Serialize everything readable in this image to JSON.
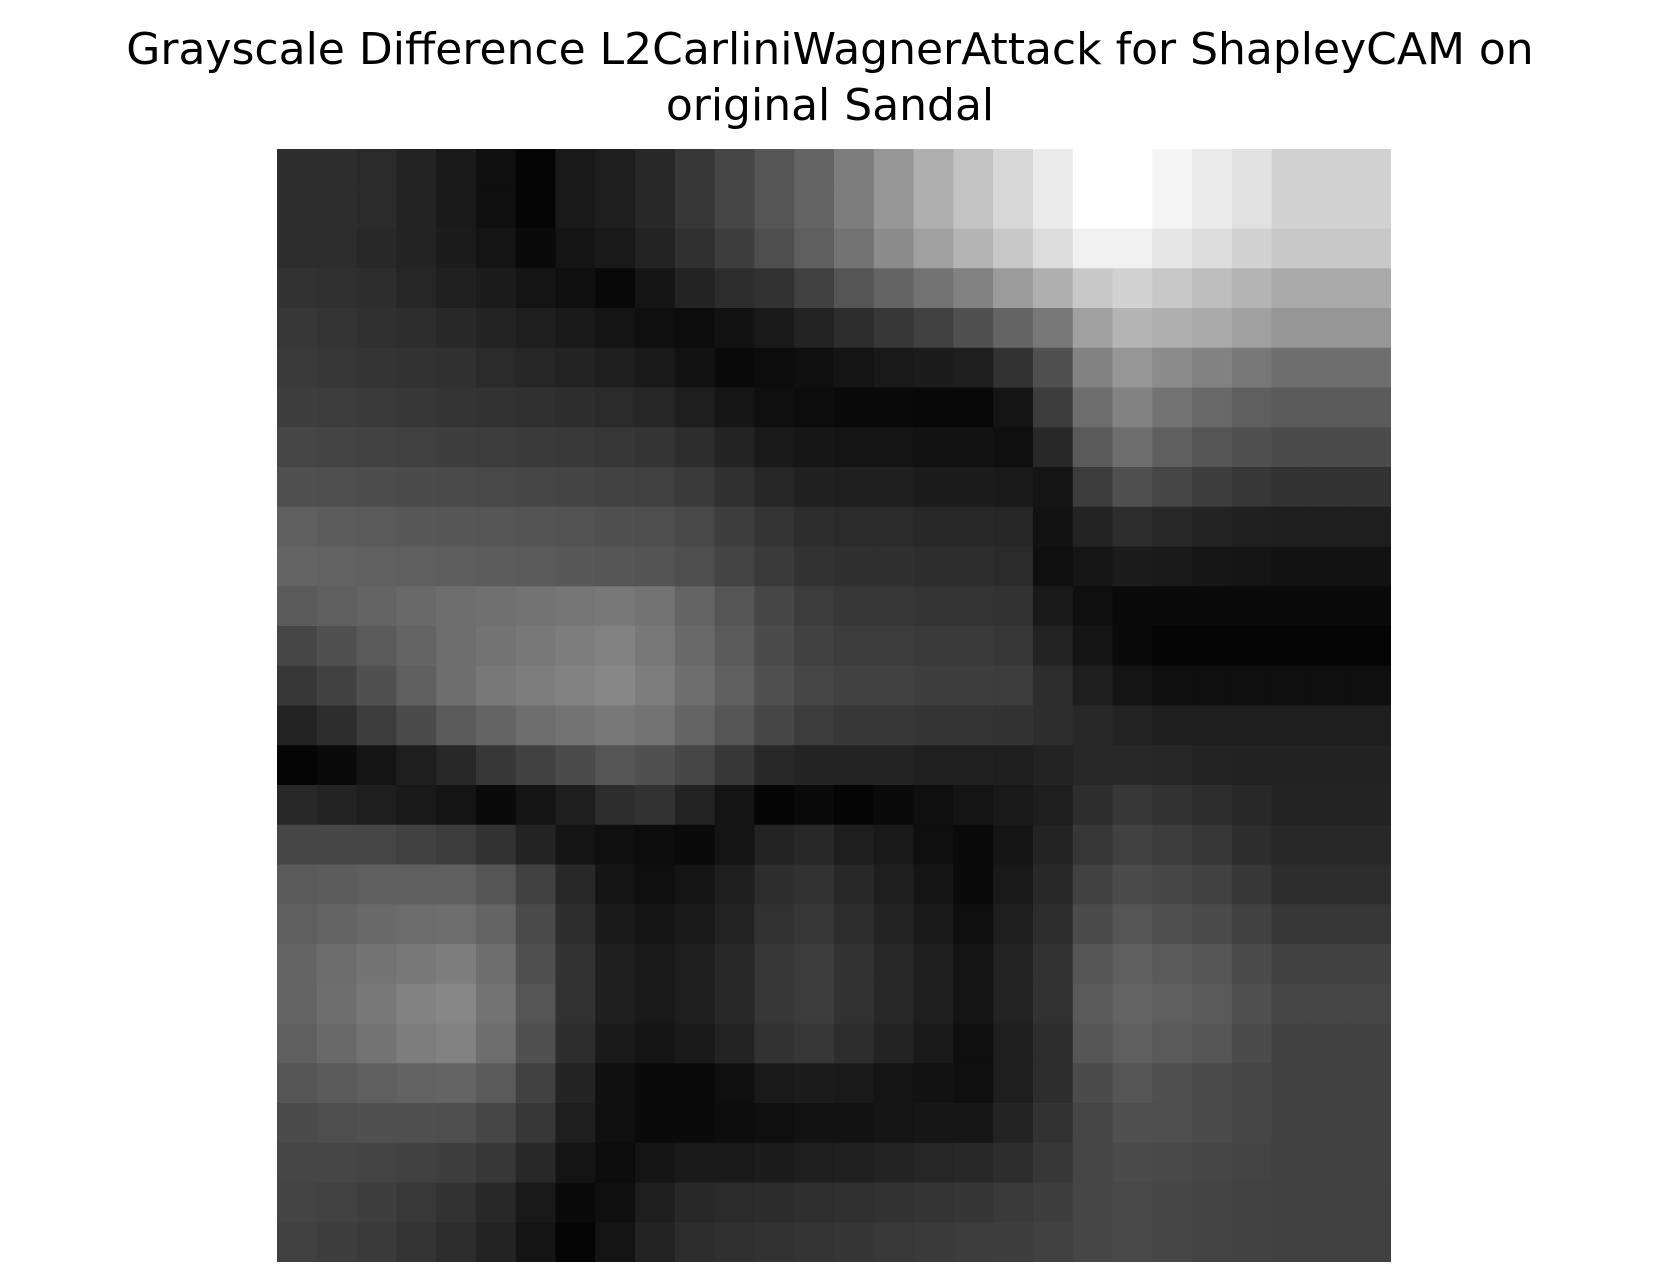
{
  "figure": {
    "title_line1": "Grayscale Difference L2CarliniWagnerAttack for ShapleyCAM on",
    "title_line2": "original Sandal"
  },
  "chart_data": {
    "type": "heatmap",
    "title": "Grayscale Difference L2CarliniWagnerAttack for ShapleyCAM on original Sandal",
    "colormap": "gray",
    "axes_visible": false,
    "rows": 28,
    "cols": 28,
    "values": [
      [
        45,
        45,
        42,
        35,
        25,
        15,
        5,
        25,
        30,
        40,
        55,
        70,
        85,
        100,
        125,
        150,
        175,
        195,
        215,
        235,
        255,
        255,
        245,
        235,
        225,
        210,
        210,
        210
      ],
      [
        45,
        45,
        42,
        35,
        25,
        15,
        5,
        25,
        30,
        40,
        55,
        70,
        85,
        100,
        125,
        150,
        175,
        195,
        215,
        235,
        255,
        255,
        245,
        235,
        225,
        210,
        210,
        210
      ],
      [
        45,
        45,
        40,
        35,
        28,
        20,
        10,
        20,
        25,
        35,
        48,
        62,
        78,
        95,
        115,
        140,
        160,
        180,
        200,
        220,
        240,
        240,
        230,
        220,
        210,
        200,
        200,
        200
      ],
      [
        50,
        48,
        45,
        38,
        32,
        28,
        20,
        15,
        8,
        20,
        35,
        45,
        50,
        65,
        85,
        100,
        115,
        130,
        155,
        175,
        200,
        210,
        200,
        190,
        180,
        170,
        170,
        170
      ],
      [
        55,
        52,
        48,
        45,
        40,
        35,
        30,
        25,
        20,
        15,
        12,
        18,
        25,
        35,
        45,
        55,
        65,
        80,
        100,
        120,
        160,
        180,
        175,
        170,
        160,
        150,
        150,
        150
      ],
      [
        58,
        55,
        52,
        50,
        48,
        42,
        38,
        35,
        30,
        25,
        18,
        10,
        12,
        15,
        20,
        25,
        28,
        30,
        50,
        80,
        130,
        150,
        140,
        130,
        120,
        110,
        110,
        110
      ],
      [
        62,
        60,
        58,
        55,
        52,
        50,
        48,
        45,
        42,
        38,
        30,
        22,
        15,
        12,
        10,
        10,
        8,
        8,
        20,
        60,
        110,
        130,
        115,
        105,
        95,
        90,
        90,
        90
      ],
      [
        70,
        68,
        66,
        64,
        62,
        60,
        58,
        56,
        55,
        52,
        45,
        35,
        25,
        22,
        20,
        20,
        18,
        18,
        15,
        40,
        90,
        110,
        95,
        85,
        80,
        75,
        75,
        75
      ],
      [
        80,
        78,
        76,
        75,
        74,
        72,
        70,
        68,
        66,
        64,
        58,
        48,
        38,
        32,
        30,
        30,
        28,
        28,
        25,
        20,
        60,
        80,
        70,
        62,
        55,
        50,
        50,
        50
      ],
      [
        95,
        92,
        90,
        88,
        86,
        85,
        84,
        82,
        80,
        78,
        72,
        62,
        52,
        45,
        42,
        42,
        40,
        40,
        38,
        18,
        35,
        45,
        40,
        35,
        32,
        30,
        30,
        30
      ],
      [
        100,
        98,
        96,
        95,
        94,
        92,
        90,
        88,
        86,
        84,
        78,
        68,
        58,
        50,
        47,
        47,
        45,
        45,
        42,
        15,
        22,
        28,
        25,
        22,
        20,
        18,
        18,
        18
      ],
      [
        90,
        95,
        100,
        105,
        110,
        112,
        115,
        118,
        120,
        115,
        100,
        85,
        70,
        60,
        55,
        55,
        52,
        52,
        50,
        25,
        15,
        10,
        10,
        10,
        10,
        10,
        10,
        10
      ],
      [
        70,
        80,
        90,
        100,
        110,
        115,
        120,
        125,
        130,
        120,
        105,
        90,
        75,
        65,
        60,
        60,
        58,
        58,
        55,
        35,
        20,
        10,
        5,
        5,
        5,
        5,
        5,
        5
      ],
      [
        55,
        65,
        80,
        95,
        110,
        120,
        125,
        130,
        135,
        125,
        110,
        95,
        80,
        70,
        65,
        65,
        62,
        62,
        60,
        45,
        30,
        20,
        15,
        15,
        15,
        15,
        15,
        15
      ],
      [
        35,
        45,
        60,
        75,
        90,
        100,
        110,
        115,
        120,
        115,
        100,
        85,
        70,
        60,
        55,
        55,
        52,
        52,
        50,
        45,
        40,
        35,
        30,
        30,
        30,
        30,
        30,
        30
      ],
      [
        5,
        10,
        20,
        30,
        40,
        55,
        65,
        75,
        85,
        80,
        70,
        55,
        40,
        35,
        35,
        35,
        32,
        32,
        30,
        35,
        40,
        40,
        38,
        36,
        34,
        34,
        34,
        34
      ],
      [
        40,
        35,
        30,
        25,
        20,
        10,
        20,
        30,
        45,
        50,
        35,
        20,
        5,
        10,
        5,
        10,
        15,
        20,
        25,
        30,
        45,
        55,
        50,
        45,
        40,
        35,
        35,
        35
      ],
      [
        70,
        70,
        70,
        65,
        60,
        50,
        35,
        20,
        15,
        12,
        10,
        20,
        35,
        40,
        30,
        25,
        15,
        10,
        20,
        35,
        55,
        65,
        60,
        55,
        45,
        40,
        40,
        40
      ],
      [
        90,
        92,
        95,
        95,
        95,
        85,
        65,
        40,
        20,
        15,
        20,
        30,
        45,
        50,
        40,
        30,
        20,
        10,
        25,
        40,
        65,
        75,
        70,
        65,
        55,
        45,
        45,
        45
      ],
      [
        95,
        100,
        105,
        108,
        110,
        100,
        75,
        45,
        25,
        20,
        25,
        35,
        50,
        55,
        45,
        35,
        25,
        15,
        30,
        45,
        75,
        85,
        80,
        75,
        65,
        55,
        55,
        55
      ],
      [
        100,
        108,
        115,
        120,
        125,
        110,
        80,
        50,
        30,
        25,
        30,
        40,
        55,
        60,
        50,
        40,
        30,
        20,
        35,
        50,
        85,
        95,
        90,
        85,
        75,
        65,
        65,
        65
      ],
      [
        100,
        110,
        120,
        130,
        135,
        115,
        85,
        50,
        30,
        25,
        30,
        40,
        55,
        60,
        50,
        40,
        30,
        20,
        35,
        50,
        90,
        100,
        95,
        90,
        80,
        70,
        70,
        70
      ],
      [
        95,
        105,
        115,
        125,
        130,
        110,
        80,
        45,
        25,
        20,
        25,
        35,
        50,
        55,
        45,
        35,
        25,
        15,
        30,
        45,
        85,
        95,
        90,
        85,
        75,
        65,
        65,
        65
      ],
      [
        85,
        90,
        95,
        98,
        100,
        90,
        65,
        35,
        15,
        10,
        10,
        15,
        25,
        28,
        25,
        20,
        18,
        15,
        30,
        45,
        75,
        85,
        80,
        75,
        70,
        65,
        65,
        65
      ],
      [
        75,
        78,
        80,
        80,
        78,
        70,
        55,
        30,
        15,
        10,
        10,
        12,
        15,
        18,
        18,
        20,
        22,
        22,
        35,
        50,
        70,
        80,
        78,
        75,
        70,
        65,
        65,
        65
      ],
      [
        70,
        70,
        68,
        65,
        62,
        55,
        40,
        20,
        12,
        20,
        25,
        25,
        28,
        30,
        32,
        35,
        38,
        40,
        45,
        55,
        70,
        75,
        72,
        70,
        68,
        65,
        65,
        65
      ],
      [
        68,
        66,
        62,
        56,
        50,
        40,
        25,
        10,
        15,
        30,
        40,
        42,
        44,
        46,
        48,
        50,
        52,
        54,
        58,
        62,
        70,
        72,
        70,
        68,
        66,
        64,
        64,
        64
      ],
      [
        65,
        62,
        58,
        52,
        45,
        35,
        20,
        5,
        20,
        35,
        45,
        48,
        50,
        52,
        54,
        56,
        58,
        60,
        62,
        65,
        70,
        72,
        70,
        68,
        66,
        64,
        64,
        64
      ]
    ]
  }
}
